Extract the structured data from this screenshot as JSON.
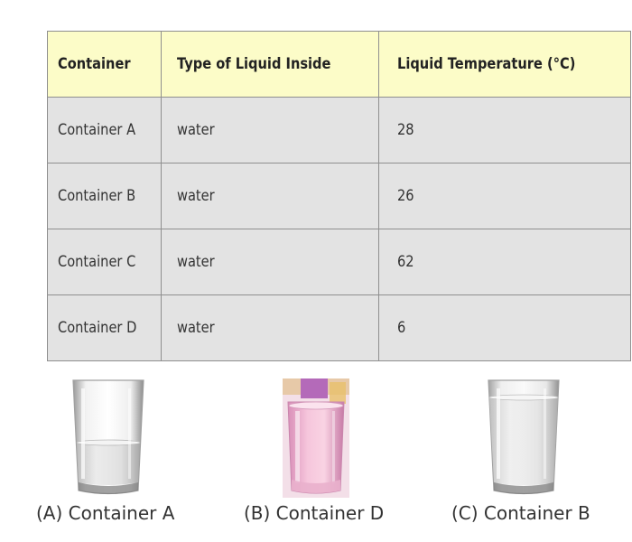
{
  "table": {
    "headers": [
      "Container",
      "Type of Liquid Inside",
      "Liquid Temperature (°C)"
    ],
    "rows": [
      [
        "Container A",
        "water",
        "28"
      ],
      [
        "Container B",
        "water",
        "26"
      ],
      [
        "Container C",
        "water",
        "62"
      ],
      [
        "Container D",
        "water",
        "6"
      ]
    ]
  },
  "options": [
    {
      "label": "(A) Container A",
      "image": "glass-half-water-icon"
    },
    {
      "label": "(B) Container D",
      "image": "glass-pink-drink-icon"
    },
    {
      "label": "(C) Container B",
      "image": "glass-full-water-icon"
    }
  ],
  "colors": {
    "header_bg": "#fcfcc8",
    "cell_bg": "#e3e3e3",
    "border": "#8f8f8f"
  }
}
